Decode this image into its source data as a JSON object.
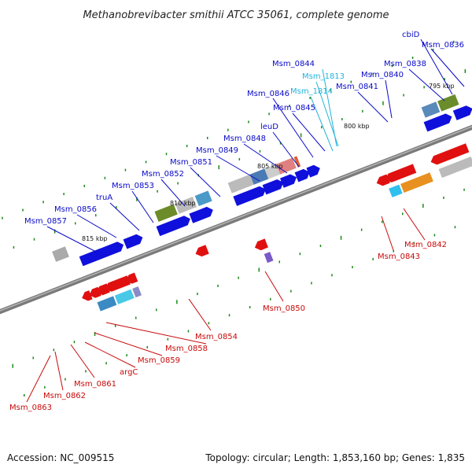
{
  "title": "Methanobrevibacter smithii ATCC 35061, complete genome",
  "footer": {
    "accession": "Accession: NC_009515",
    "summary": "Topology: circular; Length: 1,853,160 bp; Genes: 1,835"
  },
  "colors": {
    "forward_label": "#0a0ac8",
    "reverse_label": "#c80a0a",
    "rna_label": "#22b4dc",
    "backbone": "#808080",
    "tick": "#1a8a1a"
  },
  "ticks": [
    "795 kbp",
    "800 kbp",
    "805 kbp",
    "810 kbp",
    "815 kbp"
  ],
  "forward_labels": [
    "Msm_0836",
    "cbiD",
    "Msm_0838",
    "Msm_0840",
    "Msm_0841",
    "Msm_0844",
    "Msm_0845",
    "Msm_0846",
    "leuD",
    "Msm_0848",
    "Msm_0849",
    "Msm_0851",
    "Msm_0852",
    "Msm_0853",
    "truA",
    "Msm_0856",
    "Msm_0857"
  ],
  "rna_labels": [
    "Msm_1813",
    "Msm_1814"
  ],
  "reverse_labels": [
    "Msm_0842",
    "Msm_0843",
    "Msm_0850",
    "Msm_0854",
    "Msm_0858",
    "Msm_0859",
    "argC",
    "Msm_0861",
    "Msm_0862",
    "Msm_0863"
  ]
}
